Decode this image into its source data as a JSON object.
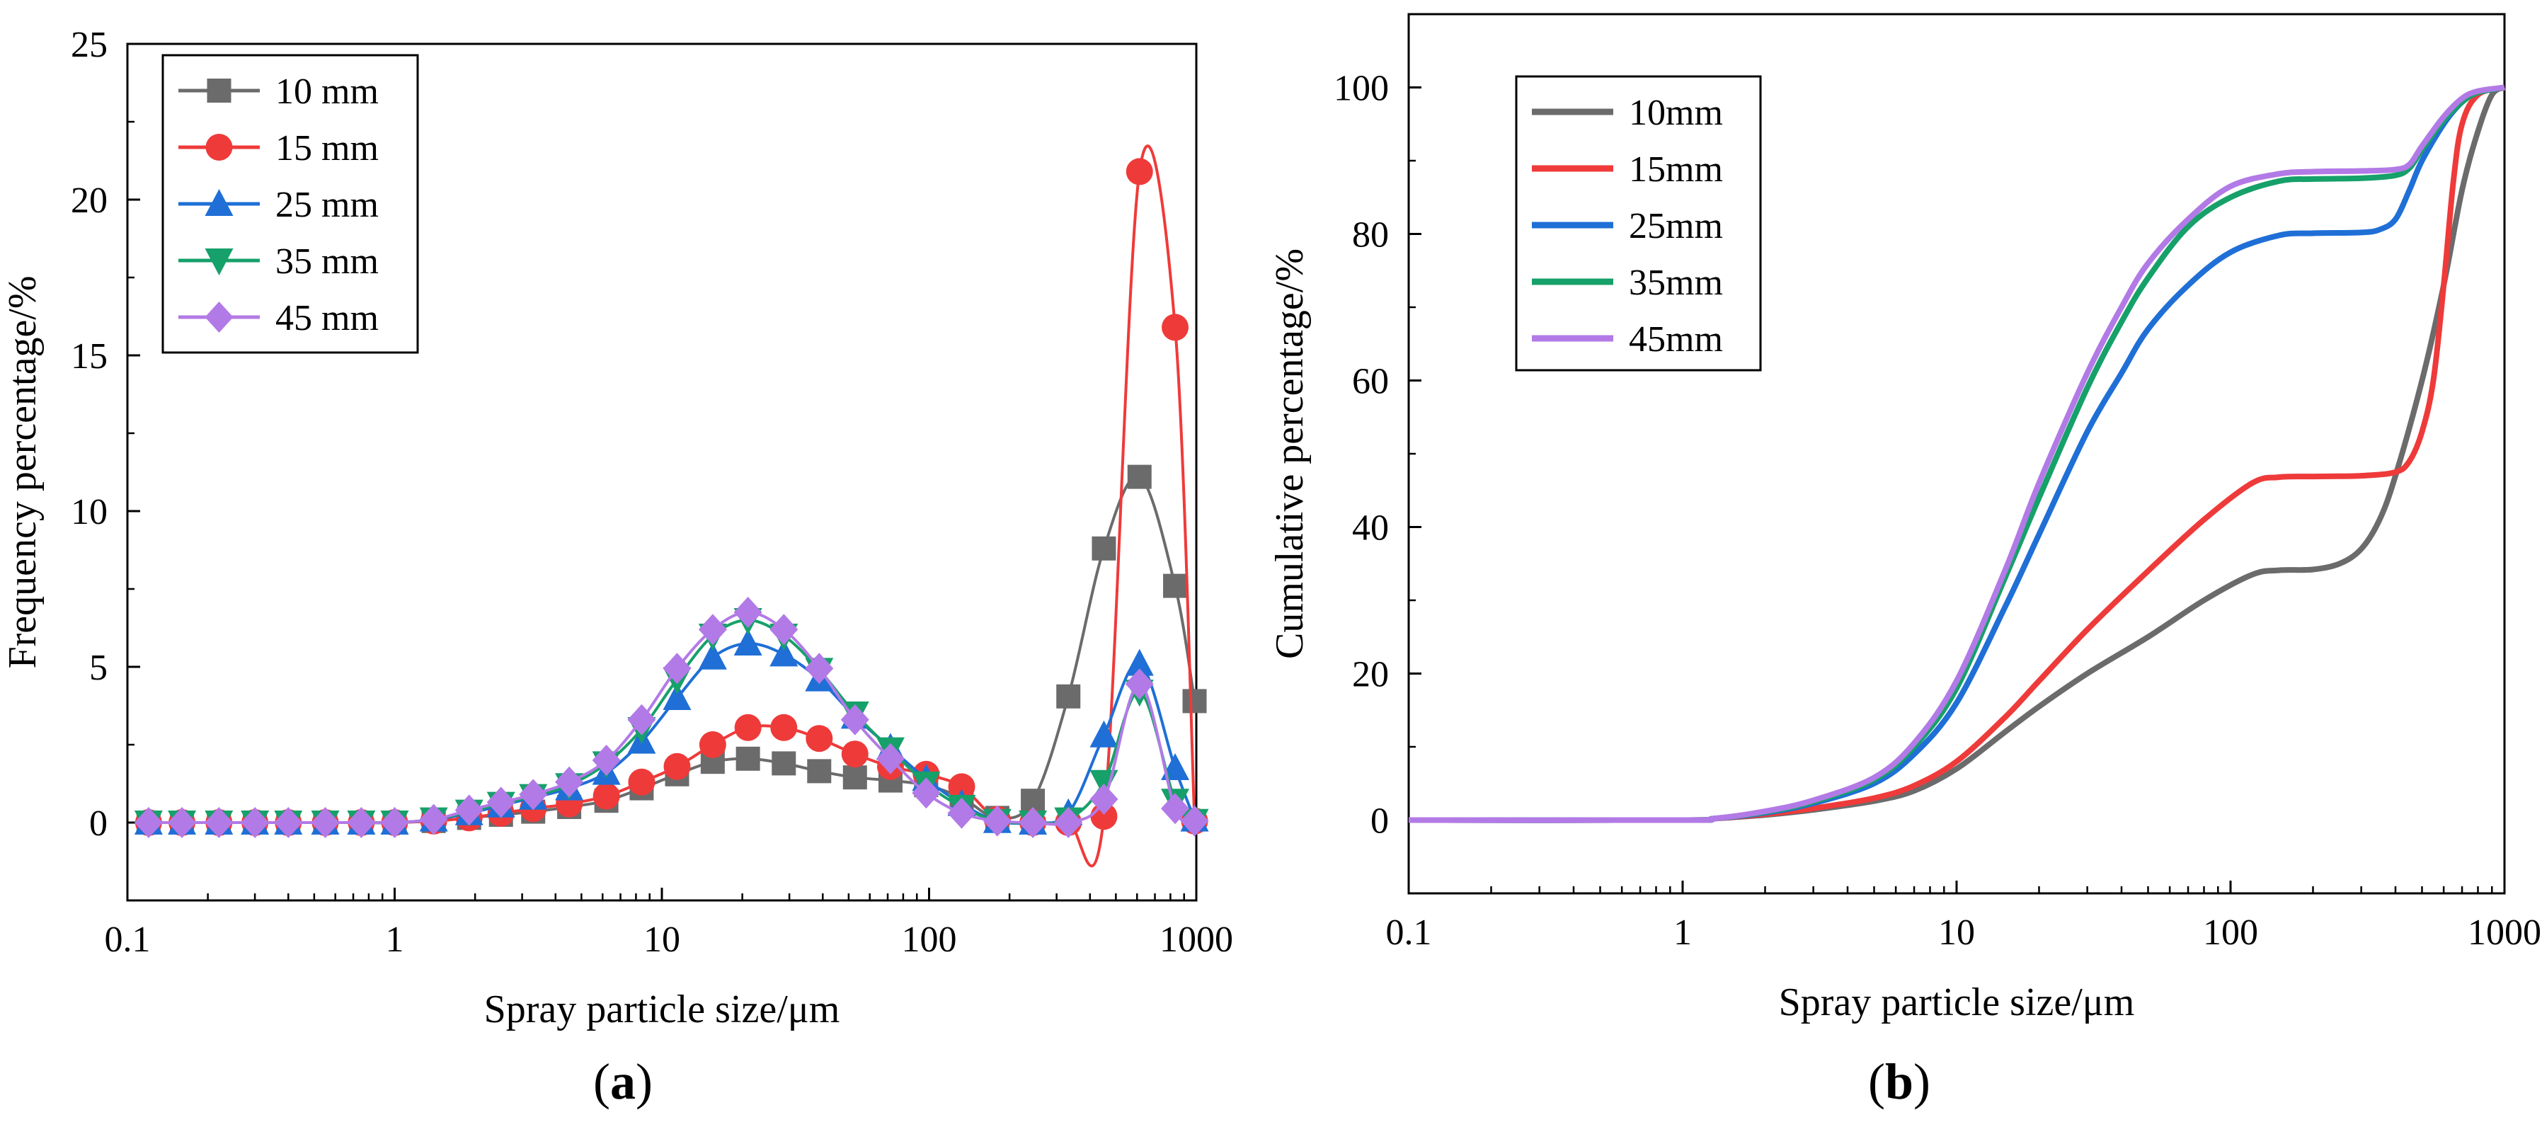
{
  "colors": {
    "10": "#6b6b6b",
    "15": "#ef3a3a",
    "25": "#1f6fd6",
    "35": "#16a06a",
    "45": "#b27ae6",
    "axis": "#000000"
  },
  "panel_labels": {
    "a": {
      "open": "(",
      "letter": "a",
      "close": ")"
    },
    "b": {
      "open": "(",
      "letter": "b",
      "close": ")"
    }
  },
  "chart_data": [
    {
      "id": "a",
      "type": "line",
      "xscale": "log",
      "xlabel": "Spray particle size/μm",
      "ylabel": "Frequency percentage/%",
      "xlim": [
        0.1,
        1000
      ],
      "ylim": [
        -2.5,
        25
      ],
      "xticks": [
        {
          "v": 0.1,
          "label": "0.1"
        },
        {
          "v": 1,
          "label": "1"
        },
        {
          "v": 10,
          "label": "10"
        },
        {
          "v": 100,
          "label": "100"
        },
        {
          "v": 1000,
          "label": "1000"
        }
      ],
      "yticks": [
        {
          "v": 0,
          "label": "0"
        },
        {
          "v": 5,
          "label": "5"
        },
        {
          "v": 10,
          "label": "10"
        },
        {
          "v": 15,
          "label": "15"
        },
        {
          "v": 20,
          "label": "20"
        },
        {
          "v": 25,
          "label": "25"
        }
      ],
      "legend_position": "top-left",
      "x": [
        0.12,
        0.16,
        0.22,
        0.3,
        0.4,
        0.55,
        0.75,
        1.0,
        1.4,
        1.9,
        2.5,
        3.3,
        4.5,
        6.2,
        8.4,
        11.4,
        15.5,
        21,
        28.6,
        38.8,
        52.8,
        71.7,
        97.5,
        132.4,
        180,
        244.5,
        332,
        451,
        613,
        833,
        985
      ],
      "series": [
        {
          "name": "10 mm",
          "marker": "square",
          "values": [
            0,
            0,
            0,
            0,
            0,
            0,
            0,
            0,
            0.05,
            0.15,
            0.25,
            0.35,
            0.5,
            0.7,
            1.1,
            1.55,
            1.95,
            2.05,
            1.9,
            1.65,
            1.45,
            1.35,
            1.2,
            0.8,
            0.15,
            0.7,
            4.05,
            8.8,
            11.1,
            7.6,
            3.9
          ]
        },
        {
          "name": "15 mm",
          "marker": "circle",
          "values": [
            0,
            0,
            0,
            0,
            0,
            0,
            0,
            0,
            0.05,
            0.15,
            0.3,
            0.45,
            0.6,
            0.85,
            1.3,
            1.8,
            2.5,
            3.05,
            3.05,
            2.7,
            2.2,
            1.8,
            1.55,
            1.15,
            0.1,
            0,
            0,
            0.2,
            20.9,
            15.9,
            0.05
          ]
        },
        {
          "name": "25 mm",
          "marker": "triangle-up",
          "values": [
            0,
            0,
            0,
            0,
            0,
            0,
            0,
            0,
            0.1,
            0.3,
            0.55,
            0.8,
            1.1,
            1.6,
            2.6,
            4.0,
            5.3,
            5.75,
            5.4,
            4.6,
            3.4,
            2.4,
            1.4,
            0.6,
            0.05,
            0,
            0.3,
            2.8,
            5.1,
            1.75,
            0.1
          ]
        },
        {
          "name": "35 mm",
          "marker": "triangle-down",
          "values": [
            0,
            0,
            0,
            0,
            0,
            0,
            0,
            0,
            0.1,
            0.35,
            0.6,
            0.85,
            1.2,
            1.9,
            3.0,
            4.6,
            6.0,
            6.5,
            6.0,
            4.9,
            3.5,
            2.35,
            1.25,
            0.5,
            0.05,
            0,
            0.1,
            1.3,
            4.2,
            0.7,
            0.05
          ]
        },
        {
          "name": "45 mm",
          "marker": "diamond",
          "values": [
            0,
            0,
            0,
            0,
            0,
            0,
            0,
            0,
            0.1,
            0.4,
            0.65,
            0.9,
            1.3,
            2.0,
            3.3,
            4.95,
            6.2,
            6.75,
            6.2,
            4.95,
            3.3,
            2.05,
            0.95,
            0.3,
            0.05,
            0,
            0,
            0.75,
            4.45,
            0.45,
            0.05
          ]
        }
      ]
    },
    {
      "id": "b",
      "type": "line",
      "xscale": "log",
      "xlabel": "Spray particle size/μm",
      "ylabel": "Cumulative percentage/%",
      "xlim": [
        0.1,
        1000
      ],
      "ylim": [
        -10,
        110
      ],
      "xticks": [
        {
          "v": 0.1,
          "label": "0.1"
        },
        {
          "v": 1,
          "label": "1"
        },
        {
          "v": 10,
          "label": "10"
        },
        {
          "v": 100,
          "label": "100"
        },
        {
          "v": 1000,
          "label": "1000"
        }
      ],
      "yticks": [
        {
          "v": 0,
          "label": "0"
        },
        {
          "v": 20,
          "label": "20"
        },
        {
          "v": 40,
          "label": "40"
        },
        {
          "v": 60,
          "label": "60"
        },
        {
          "v": 80,
          "label": "80"
        },
        {
          "v": 100,
          "label": "100"
        }
      ],
      "legend_position": "top-left",
      "series": [
        {
          "name": "10mm",
          "points": [
            [
              0.1,
              0
            ],
            [
              1.0,
              0
            ],
            [
              1.3,
              0.2
            ],
            [
              2,
              0.7
            ],
            [
              3,
              1.4
            ],
            [
              5,
              2.6
            ],
            [
              7,
              4.0
            ],
            [
              10,
              7.0
            ],
            [
              15,
              12
            ],
            [
              20,
              15.5
            ],
            [
              30,
              20
            ],
            [
              50,
              25
            ],
            [
              80,
              30
            ],
            [
              120,
              33.5
            ],
            [
              150,
              34.1
            ],
            [
              200,
              34.2
            ],
            [
              250,
              35
            ],
            [
              300,
              37
            ],
            [
              350,
              41
            ],
            [
              400,
              47
            ],
            [
              500,
              60
            ],
            [
              600,
              73
            ],
            [
              700,
              86
            ],
            [
              800,
              94
            ],
            [
              900,
              99
            ],
            [
              1000,
              100
            ]
          ]
        },
        {
          "name": "15mm",
          "points": [
            [
              0.1,
              0
            ],
            [
              1.0,
              0
            ],
            [
              1.3,
              0.2
            ],
            [
              2,
              0.8
            ],
            [
              3,
              1.6
            ],
            [
              5,
              3.0
            ],
            [
              7,
              4.7
            ],
            [
              10,
              8.0
            ],
            [
              15,
              14
            ],
            [
              20,
              19
            ],
            [
              30,
              26
            ],
            [
              50,
              34
            ],
            [
              80,
              41
            ],
            [
              120,
              46
            ],
            [
              150,
              46.8
            ],
            [
              200,
              46.9
            ],
            [
              300,
              47
            ],
            [
              400,
              47.5
            ],
            [
              450,
              49
            ],
            [
              500,
              53
            ],
            [
              550,
              60
            ],
            [
              600,
              73
            ],
            [
              650,
              87
            ],
            [
              700,
              95
            ],
            [
              800,
              99
            ],
            [
              1000,
              100
            ]
          ]
        },
        {
          "name": "25mm",
          "points": [
            [
              0.1,
              0
            ],
            [
              1.0,
              0
            ],
            [
              1.3,
              0.2
            ],
            [
              2,
              1.0
            ],
            [
              3,
              2.3
            ],
            [
              5,
              5.0
            ],
            [
              7,
              9.0
            ],
            [
              10,
              16
            ],
            [
              15,
              29
            ],
            [
              20,
              39
            ],
            [
              30,
              53
            ],
            [
              40,
              61
            ],
            [
              50,
              67
            ],
            [
              70,
              73
            ],
            [
              100,
              77.5
            ],
            [
              150,
              79.8
            ],
            [
              200,
              80.1
            ],
            [
              300,
              80.2
            ],
            [
              350,
              80.6
            ],
            [
              400,
              82
            ],
            [
              450,
              86
            ],
            [
              500,
              90
            ],
            [
              600,
              95
            ],
            [
              700,
              98
            ],
            [
              800,
              99.3
            ],
            [
              1000,
              100
            ]
          ]
        },
        {
          "name": "35mm",
          "points": [
            [
              0.1,
              0
            ],
            [
              1.0,
              0
            ],
            [
              1.3,
              0.2
            ],
            [
              2,
              1.1
            ],
            [
              3,
              2.5
            ],
            [
              5,
              5.5
            ],
            [
              7,
              10
            ],
            [
              10,
              18
            ],
            [
              15,
              33
            ],
            [
              20,
              44
            ],
            [
              30,
              59
            ],
            [
              40,
              68
            ],
            [
              50,
              74
            ],
            [
              70,
              81
            ],
            [
              100,
              85
            ],
            [
              150,
              87.2
            ],
            [
              200,
              87.5
            ],
            [
              300,
              87.6
            ],
            [
              400,
              88
            ],
            [
              450,
              89
            ],
            [
              500,
              91.5
            ],
            [
              600,
              95.5
            ],
            [
              700,
              98
            ],
            [
              800,
              99.3
            ],
            [
              1000,
              100
            ]
          ]
        },
        {
          "name": "45mm",
          "points": [
            [
              0.1,
              0
            ],
            [
              1.0,
              0
            ],
            [
              1.3,
              0.2
            ],
            [
              2,
              1.2
            ],
            [
              3,
              2.7
            ],
            [
              5,
              5.8
            ],
            [
              7,
              10.5
            ],
            [
              10,
              19
            ],
            [
              15,
              34
            ],
            [
              20,
              46
            ],
            [
              30,
              61
            ],
            [
              40,
              70
            ],
            [
              50,
              76
            ],
            [
              70,
              82
            ],
            [
              100,
              86.5
            ],
            [
              150,
              88.2
            ],
            [
              200,
              88.5
            ],
            [
              300,
              88.6
            ],
            [
              400,
              88.8
            ],
            [
              450,
              89.5
            ],
            [
              500,
              92
            ],
            [
              600,
              96
            ],
            [
              700,
              98.5
            ],
            [
              800,
              99.5
            ],
            [
              1000,
              100
            ]
          ]
        }
      ]
    }
  ]
}
